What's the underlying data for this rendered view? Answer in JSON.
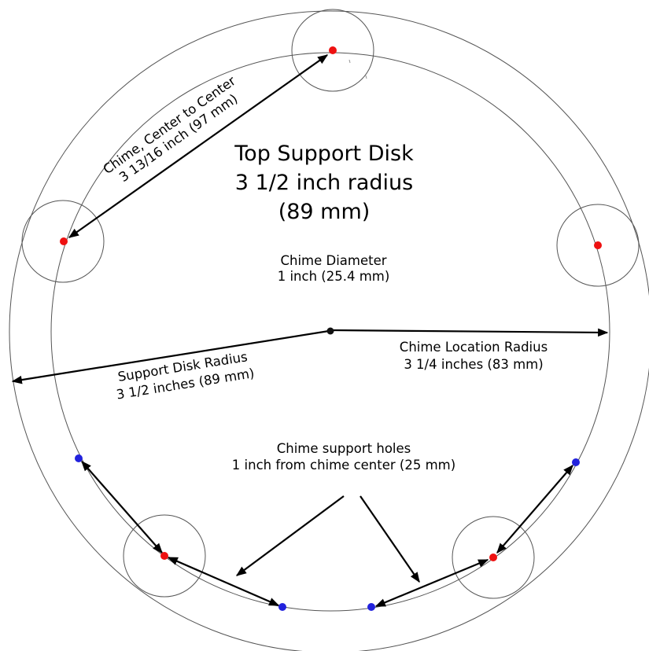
{
  "title": {
    "line1": "Top Support Disk",
    "line2": "3 1/2 inch radius",
    "line3": "(89 mm)"
  },
  "labels": {
    "center_to_center_line1": "Chime, Center to Center",
    "center_to_center_line2": "3  13/16 inch (97 mm)",
    "chime_diameter_line1": "Chime Diameter",
    "chime_diameter_line2": "1 inch (25.4 mm)",
    "chime_location_line1": "Chime Location Radius",
    "chime_location_line2": "3 1/4 inches (83 mm)",
    "support_disk_line1": "Support Disk Radius",
    "support_disk_line2": "3  1/2 inches (89 mm)",
    "support_holes_line1": "Chime support holes",
    "support_holes_line2": "1 inch from chime center (25 mm)"
  },
  "colors": {
    "chime_center": "#ee1111",
    "support_hole": "#2222dd",
    "center_point": "#111111",
    "line": "#555555",
    "arrow": "#000000"
  }
}
